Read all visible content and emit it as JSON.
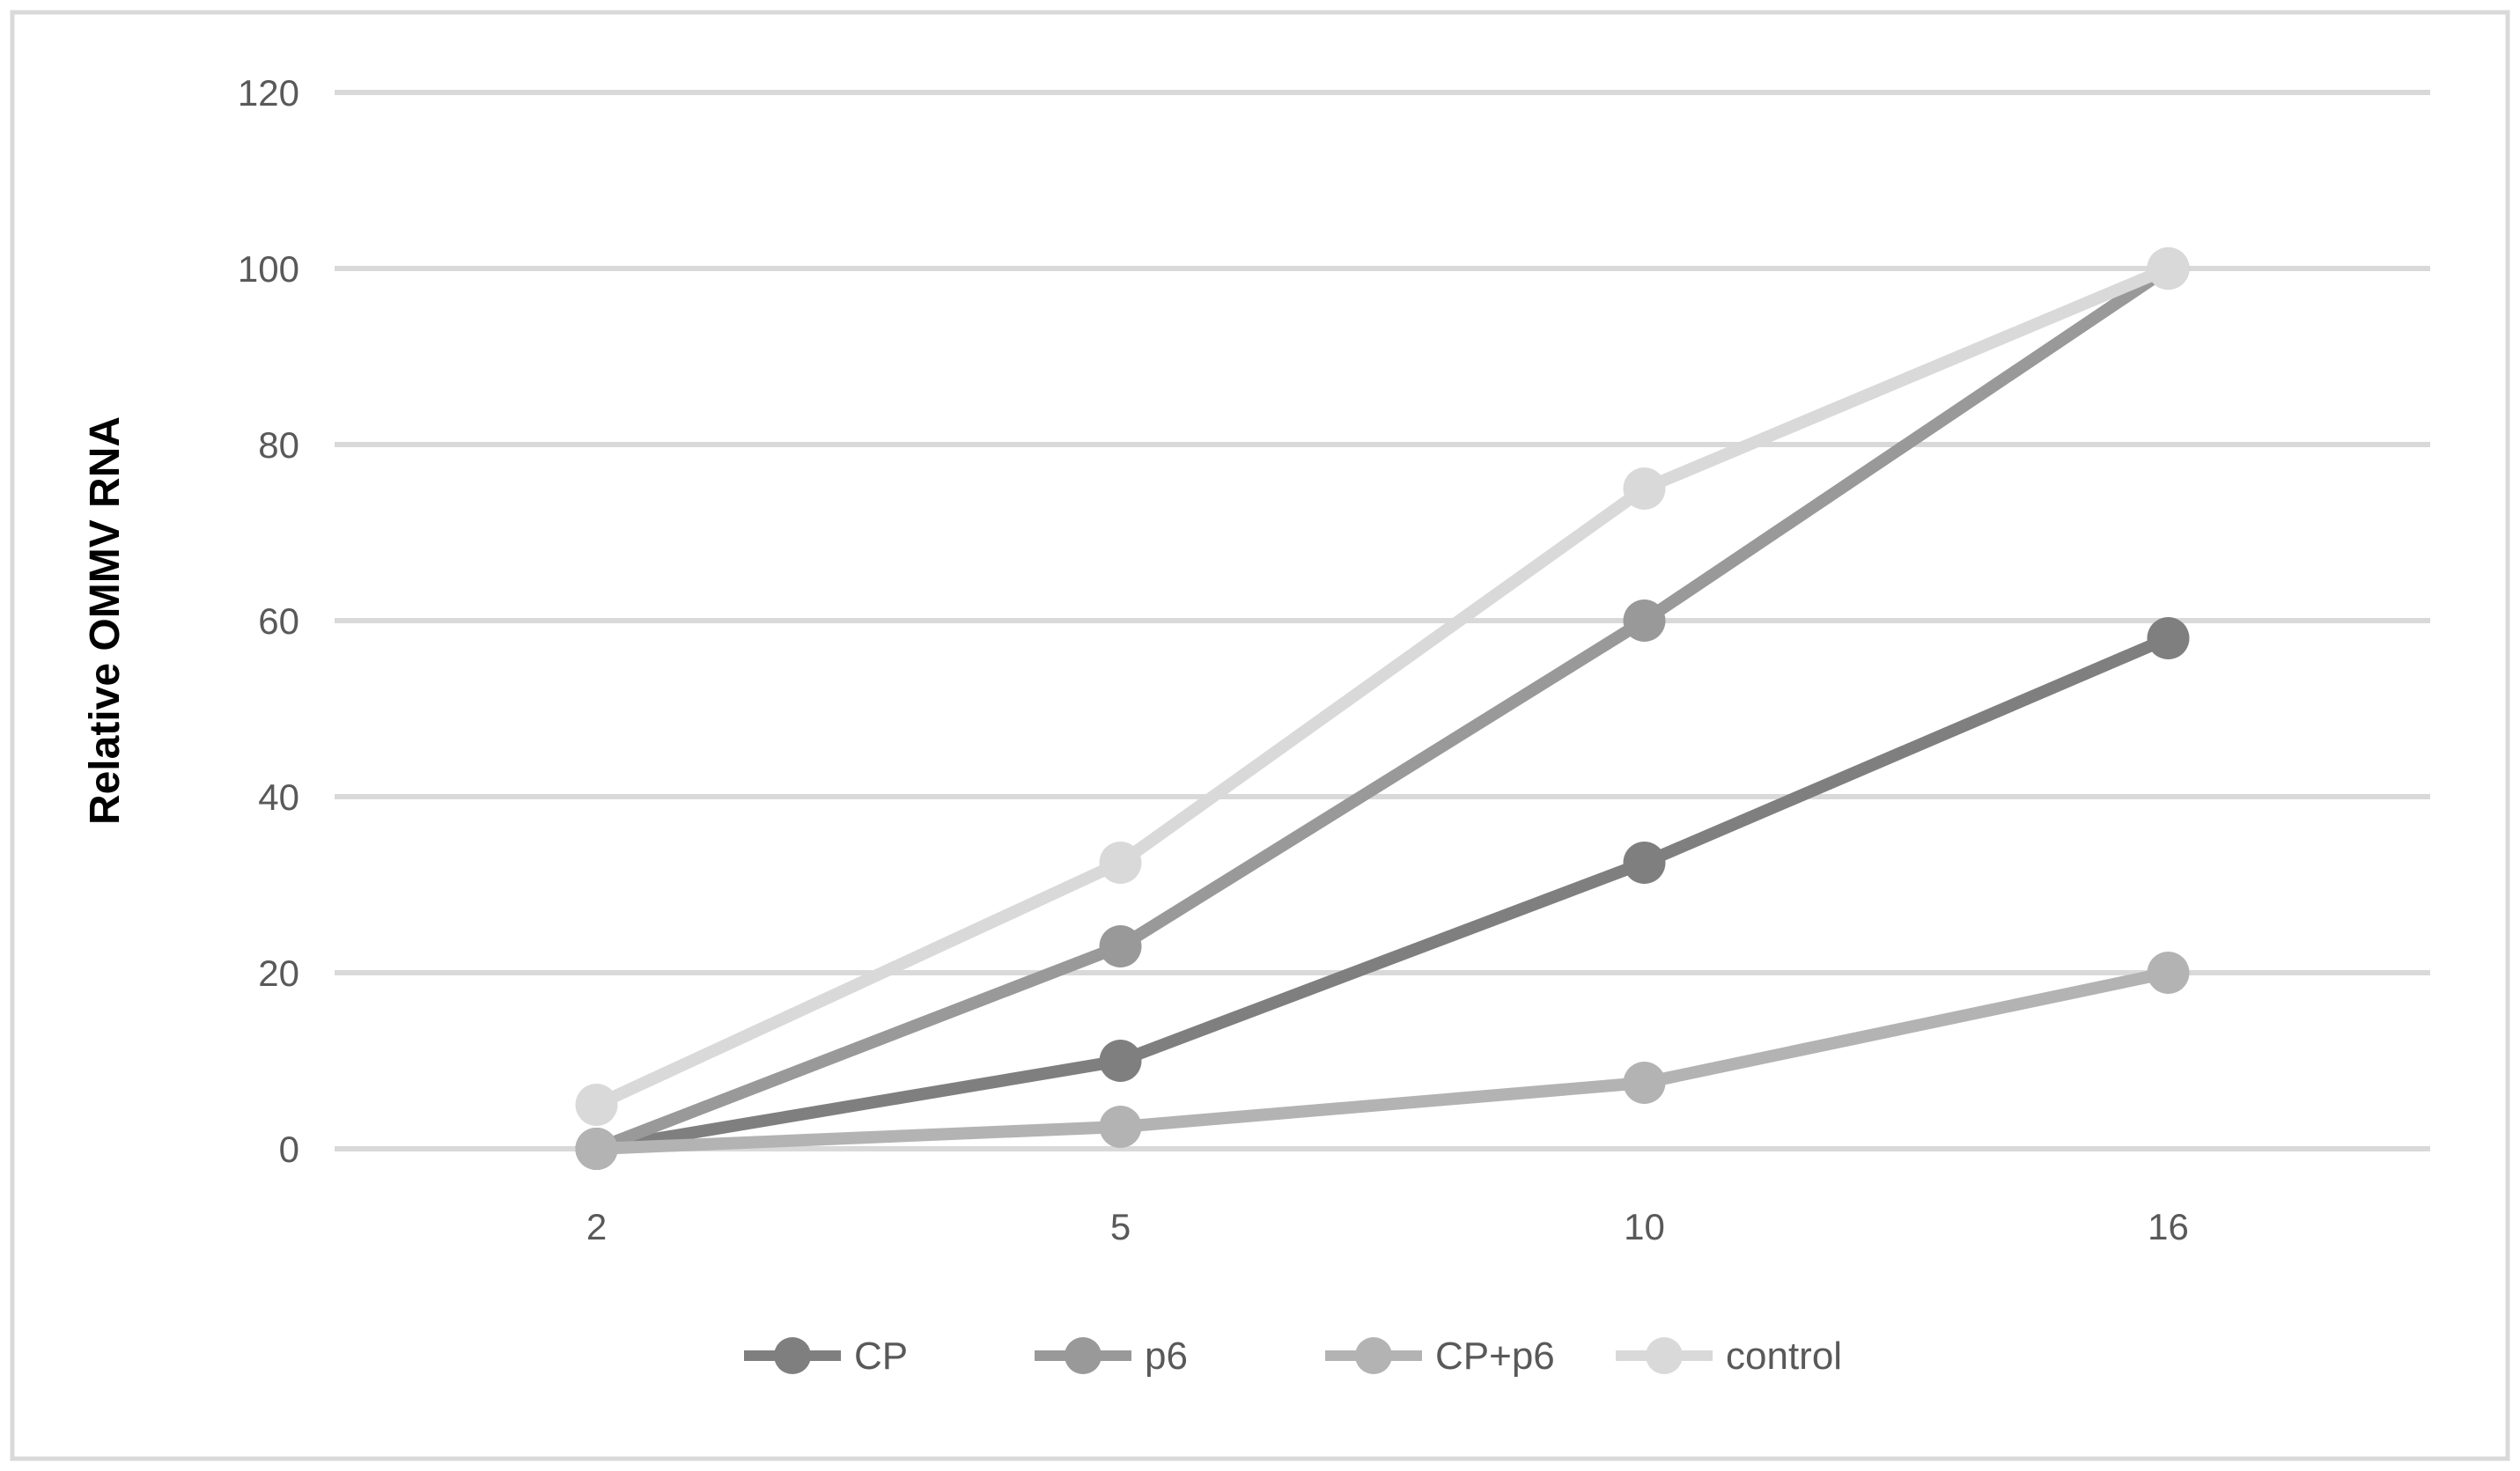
{
  "chart_data": {
    "type": "line",
    "title": "",
    "xlabel": "",
    "ylabel": "Relative OMMV RNA",
    "categories": [
      "2",
      "5",
      "10",
      "16"
    ],
    "series": [
      {
        "name": "CP",
        "color": "#7f7f7f",
        "values": [
          0,
          10,
          32.5,
          58
        ]
      },
      {
        "name": "p6",
        "color": "#999999",
        "values": [
          0,
          23,
          60,
          100
        ]
      },
      {
        "name": "CP+p6",
        "color": "#b3b3b3",
        "values": [
          0,
          2.5,
          7.5,
          20
        ]
      },
      {
        "name": "control",
        "color": "#d9d9d9",
        "values": [
          5,
          32.5,
          75,
          100
        ]
      }
    ],
    "yticks": [
      0,
      20,
      40,
      60,
      80,
      100,
      120
    ],
    "ylim": [
      0,
      120
    ],
    "grid": "horizontal",
    "legend_position": "bottom",
    "legend_labels": [
      "CP",
      "p6",
      "CP+p6",
      "control"
    ],
    "colors": {
      "gridline": "#d9d9d9",
      "chart_border": "#d9d9d9",
      "tick_label": "#595959",
      "legend_label": "#595959",
      "axis_title": "#000000",
      "background": "#ffffff"
    }
  }
}
